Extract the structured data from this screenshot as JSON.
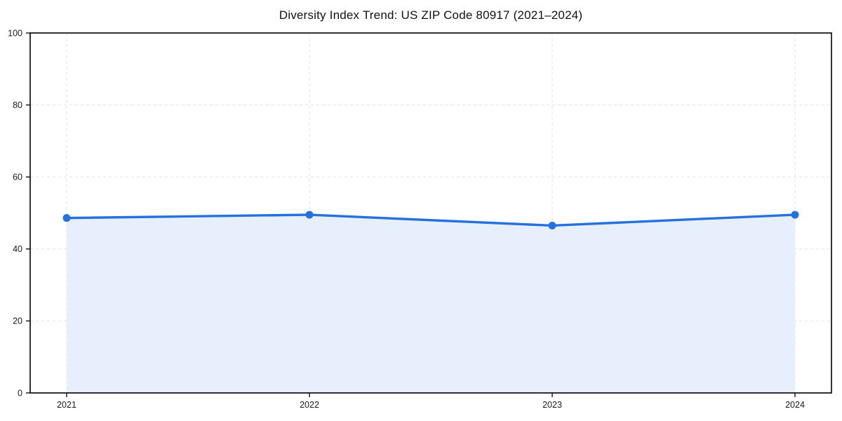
{
  "chart_data": {
    "type": "area",
    "title": "Diversity Index Trend: US ZIP Code 80917 (2021–2024)",
    "x": [
      "2021",
      "2022",
      "2023",
      "2024"
    ],
    "series": [
      {
        "name": "Diversity Index",
        "values": [
          48.6,
          49.5,
          46.5,
          49.5
        ]
      }
    ],
    "xlabel": "",
    "ylabel": "",
    "ylim": [
      0,
      100
    ],
    "yticks": [
      0,
      20,
      40,
      60,
      80,
      100
    ],
    "grid": true,
    "grid_style": "dashed",
    "legend_position": "none",
    "colors": {
      "line": "#2571de",
      "marker": "#2571de",
      "fill": "#e8effc",
      "grid": "#e2e2e2",
      "spine": "#000000",
      "tick": "#000000",
      "text": "#111111",
      "background": "#ffffff"
    }
  }
}
